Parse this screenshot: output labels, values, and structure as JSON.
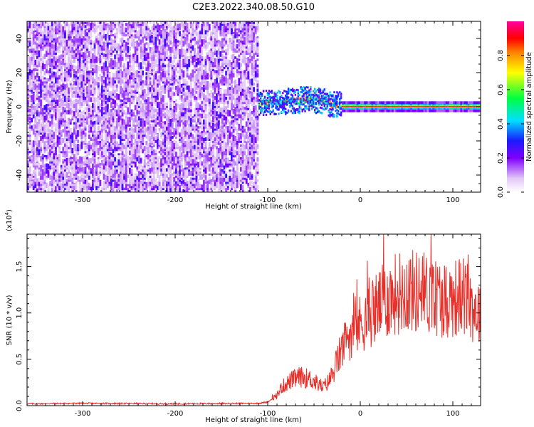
{
  "title": "C2E3.2022.340.08.50.G10",
  "chart_data": [
    {
      "type": "heatmap",
      "xlabel": "Height of straight line (km)",
      "ylabel": "Frequency (Hz)",
      "xlim": [
        -360,
        130
      ],
      "ylim": [
        -50,
        50
      ],
      "xticks": [
        -300,
        -200,
        -100,
        0,
        100
      ],
      "yticks": [
        -40,
        -20,
        0,
        20,
        40
      ],
      "grid": false,
      "colorbar": {
        "label": "Normalized spectral amplitude",
        "range": [
          0.0,
          1.0
        ],
        "ticks": [
          0.0,
          0.2,
          0.4,
          0.6,
          0.8
        ],
        "tick_labels": [
          "0.0",
          "0.2",
          "0.4",
          "0.6",
          "0.8"
        ],
        "colormap": "white-purple-blue-cyan-green-yellow-red-magenta"
      },
      "regions": [
        {
          "x_range": [
            -360,
            -110
          ],
          "description": "broadband noise",
          "freq_range": [
            -50,
            50
          ],
          "amplitude_range": [
            0.0,
            0.3
          ]
        },
        {
          "x_range": [
            -110,
            -20
          ],
          "description": "scattered signal",
          "center_freq": [
            2,
            2,
            3,
            4,
            3,
            1
          ],
          "spread_hz": 6,
          "amplitude_range": [
            0.2,
            0.9
          ]
        },
        {
          "x_range": [
            -20,
            130
          ],
          "description": "narrow carrier line",
          "center_freq": 0,
          "spread_hz": 2,
          "peak_amplitude": 1.0
        }
      ]
    },
    {
      "type": "line",
      "xlabel": "Height of straight line (km)",
      "ylabel": "SNR (10 * v/v)",
      "multiplier": "(x10^4)",
      "xlim": [
        -360,
        130
      ],
      "ylim": [
        0,
        18500
      ],
      "xticks": [
        -300,
        -200,
        -100,
        0,
        100
      ],
      "yticks": [
        0,
        5000,
        10000,
        15000
      ],
      "ytick_labels": [
        "0.0",
        "0.5",
        "1.0",
        "1.5"
      ],
      "grid": false,
      "series": [
        {
          "name": "SNR",
          "color": "#e8302a",
          "x": [
            -360,
            -300,
            -200,
            -110,
            -100,
            -90,
            -85,
            -75,
            -65,
            -55,
            -45,
            -40,
            -35,
            -30,
            -25,
            -20,
            -15,
            -10,
            0,
            10,
            20,
            30,
            40,
            50,
            60,
            70,
            80,
            90,
            100,
            110,
            120,
            130
          ],
          "y": [
            200,
            250,
            200,
            250,
            400,
            1100,
            2000,
            2700,
            3100,
            2900,
            2300,
            2000,
            2500,
            3400,
            4800,
            6000,
            7000,
            8000,
            8800,
            9800,
            10800,
            11500,
            12200,
            12500,
            12300,
            12200,
            11800,
            11500,
            11600,
            11800,
            10800,
            10000
          ]
        }
      ]
    }
  ]
}
